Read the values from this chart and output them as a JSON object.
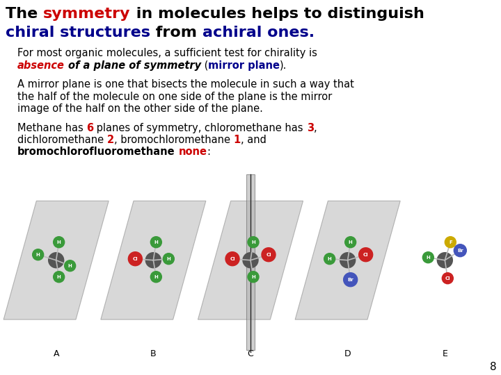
{
  "bg_color": "#ffffff",
  "title_fontsize": 16,
  "body_fontsize": 10.5,
  "page_number": "8",
  "labels": [
    "A",
    "B",
    "C",
    "D",
    "E"
  ],
  "title_line1": [
    {
      "text": "The ",
      "color": "#000000",
      "bold": true,
      "italic": false
    },
    {
      "text": "symmetry",
      "color": "#cc0000",
      "bold": true,
      "italic": false
    },
    {
      "text": " in molecules helps to distinguish",
      "color": "#000000",
      "bold": true,
      "italic": false
    }
  ],
  "title_line2": [
    {
      "text": "chiral structures",
      "color": "#00008b",
      "bold": true,
      "italic": false
    },
    {
      "text": " from ",
      "color": "#000000",
      "bold": true,
      "italic": false
    },
    {
      "text": "achiral ones.",
      "color": "#00008b",
      "bold": true,
      "italic": false
    }
  ],
  "p1_line1": [
    {
      "text": "For most organic molecules, a sufficient test for chirality is",
      "color": "#000000",
      "bold": false,
      "italic": false
    }
  ],
  "p1_line2": [
    {
      "text": "absence",
      "color": "#cc0000",
      "bold": true,
      "italic": true
    },
    {
      "text": " ",
      "color": "#000000",
      "bold": false,
      "italic": false
    },
    {
      "text": "of a plane of symmetry",
      "color": "#000000",
      "bold": true,
      "italic": true
    },
    {
      "text": " (",
      "color": "#000000",
      "bold": false,
      "italic": false
    },
    {
      "text": "mirror plane",
      "color": "#00008b",
      "bold": true,
      "italic": false
    },
    {
      "text": ").",
      "color": "#000000",
      "bold": false,
      "italic": false
    }
  ],
  "p2_lines": [
    "A mirror plane is one that bisects the molecule in such a way that",
    "the half of the molecule on one side of the plane is the mirror",
    "image of the half on the other side of the plane."
  ],
  "p3_line1": [
    {
      "text": "Methane has ",
      "color": "#000000",
      "bold": false,
      "italic": false
    },
    {
      "text": "6",
      "color": "#cc0000",
      "bold": true,
      "italic": false
    },
    {
      "text": " planes of symmetry, chloromethane has ",
      "color": "#000000",
      "bold": false,
      "italic": false
    },
    {
      "text": "3",
      "color": "#cc0000",
      "bold": true,
      "italic": false
    },
    {
      "text": ",",
      "color": "#000000",
      "bold": false,
      "italic": false
    }
  ],
  "p3_line2": [
    {
      "text": "dichloromethane ",
      "color": "#000000",
      "bold": false,
      "italic": false
    },
    {
      "text": "2",
      "color": "#cc0000",
      "bold": true,
      "italic": false
    },
    {
      "text": ", bromochloromethane ",
      "color": "#000000",
      "bold": false,
      "italic": false
    },
    {
      "text": "1",
      "color": "#cc0000",
      "bold": true,
      "italic": false
    },
    {
      "text": ", and",
      "color": "#000000",
      "bold": false,
      "italic": false
    }
  ],
  "p3_line3": [
    {
      "text": "bromochlorofluoromethane",
      "color": "#000000",
      "bold": true,
      "italic": false
    },
    {
      "text": " ",
      "color": "#000000",
      "bold": false,
      "italic": false
    },
    {
      "text": "none",
      "color": "#cc0000",
      "bold": true,
      "italic": false
    },
    {
      "text": ":",
      "color": "#000000",
      "bold": false,
      "italic": false
    }
  ]
}
